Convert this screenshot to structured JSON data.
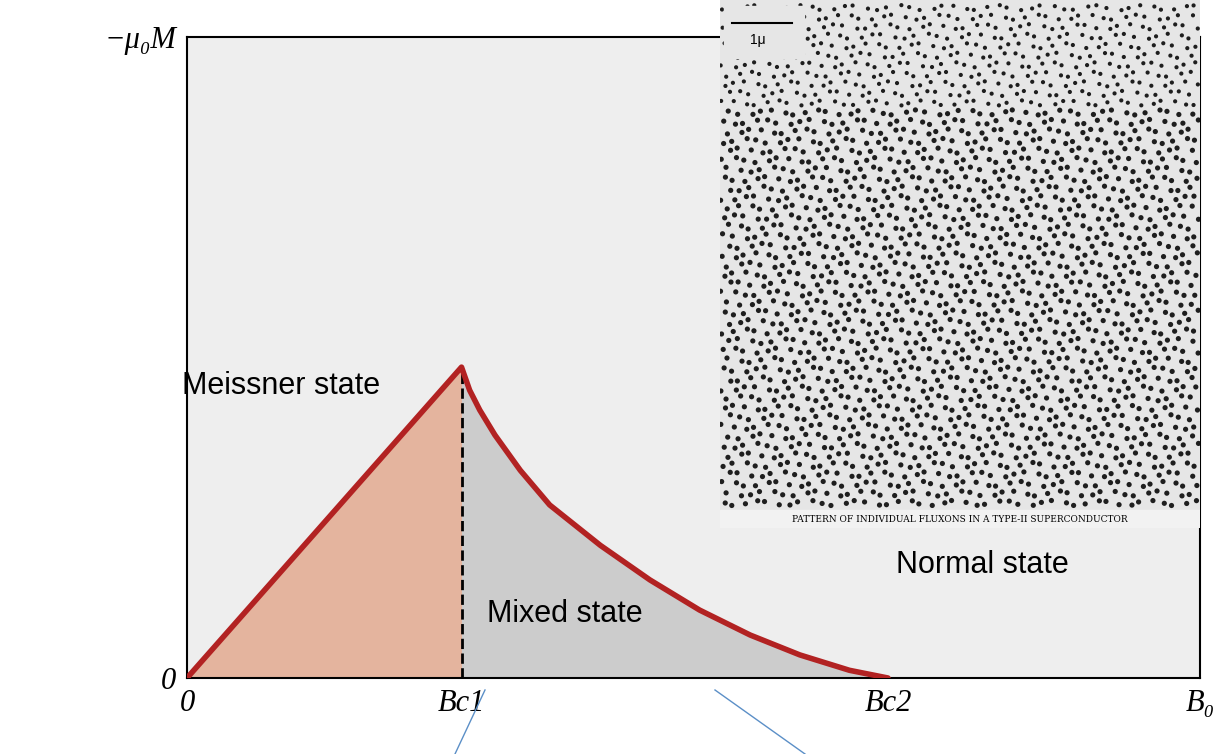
{
  "chart_data": {
    "type": "line",
    "x": [
      0,
      2.71,
      2.79,
      2.89,
      3.04,
      3.29,
      3.58,
      4.08,
      4.57,
      5.06,
      5.56,
      6.05,
      6.54,
      6.92
    ],
    "values": [
      0,
      4.85,
      4.49,
      4.18,
      3.79,
      3.24,
      2.7,
      2.07,
      1.53,
      1.06,
      0.67,
      0.36,
      0.12,
      0
    ],
    "color": "#b22222",
    "xlim": [
      0,
      10
    ],
    "ylim": [
      0,
      10
    ],
    "xticks": [
      0,
      {
        "value": 2.71,
        "label": "Bc1"
      },
      {
        "value": 6.92,
        "label": "Bc2"
      },
      {
        "value": 10,
        "label": "B₀"
      }
    ],
    "yticks": [
      0,
      {
        "value": 10,
        "label": "−μ₀M"
      }
    ],
    "grid": false,
    "annotations": [
      "Meissner state",
      "Mixed state",
      "Normal state"
    ],
    "inset": {
      "scale_bar": "1μ",
      "caption": "PATTERN OF INDIVIDUAL FLUXONS IN A TYPE-II SUPERCONDUCTOR"
    }
  }
}
